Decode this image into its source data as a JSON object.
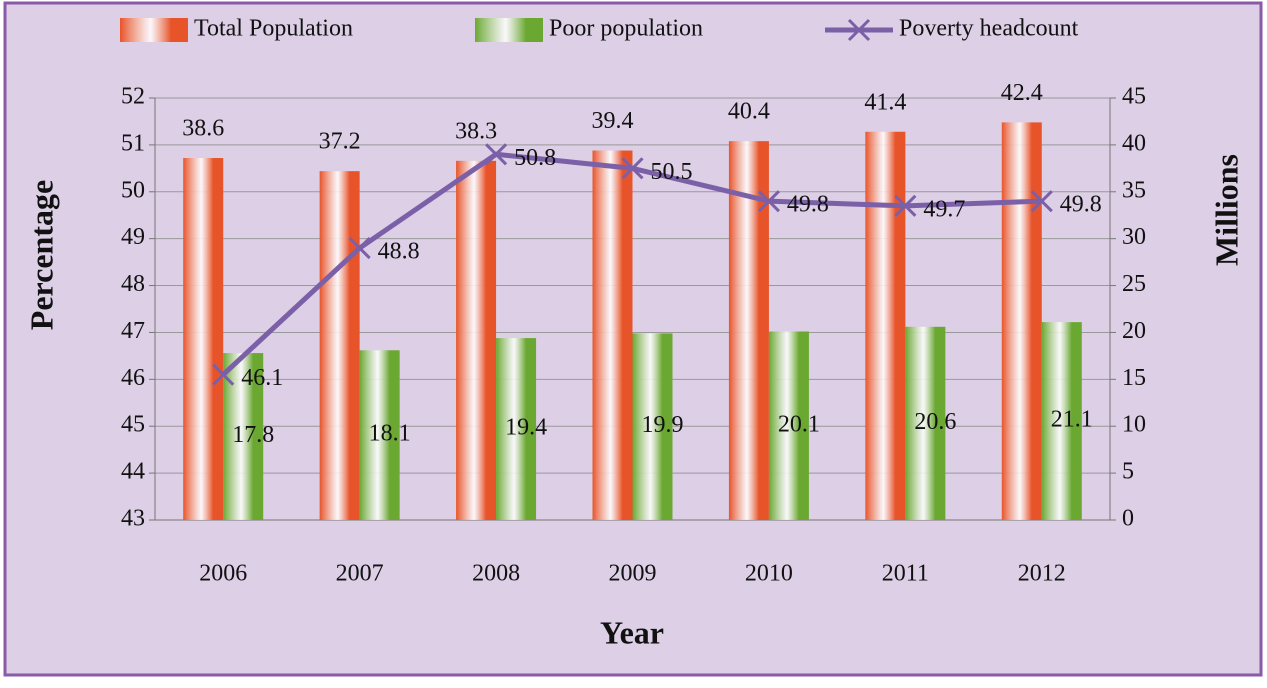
{
  "chart_data": {
    "type": "bar-line",
    "categories": [
      "2006",
      "2007",
      "2008",
      "2009",
      "2010",
      "2011",
      "2012"
    ],
    "series": [
      {
        "name": "Total Population",
        "type": "bar",
        "axis": "y2",
        "color": "#e8542a",
        "values": [
          38.6,
          37.2,
          38.3,
          39.4,
          40.4,
          41.4,
          42.4
        ]
      },
      {
        "name": "Poor population",
        "type": "bar",
        "axis": "y2",
        "color": "#6aa832",
        "values": [
          17.8,
          18.1,
          19.4,
          19.9,
          20.1,
          20.6,
          21.1
        ]
      },
      {
        "name": "Poverty headcount",
        "type": "line",
        "axis": "y",
        "color": "#7b60a8",
        "values": [
          46.1,
          48.8,
          50.8,
          50.5,
          49.8,
          49.7,
          49.8
        ]
      }
    ],
    "ylabel": "Percentage",
    "y2label": "Millions",
    "xlabel": "Year",
    "ylim": [
      43,
      52
    ],
    "yticks": [
      43,
      44,
      45,
      46,
      47,
      48,
      49,
      50,
      51,
      52
    ],
    "y2lim": [
      0,
      45
    ],
    "y2ticks": [
      0,
      5,
      10,
      15,
      20,
      25,
      30,
      35,
      40,
      45
    ],
    "grid": true,
    "legend": "top"
  }
}
